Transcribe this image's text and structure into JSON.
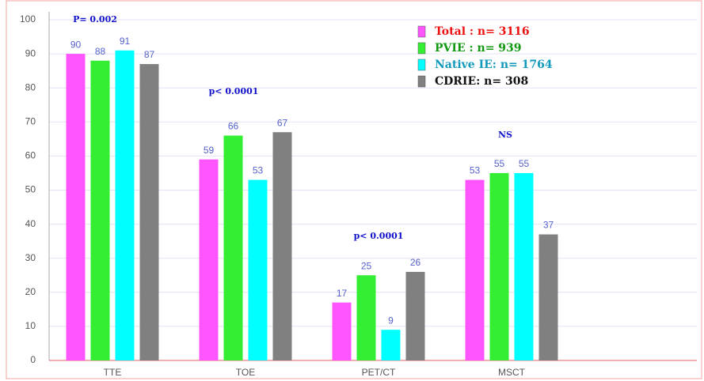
{
  "chart_data": {
    "type": "bar",
    "categories": [
      "TTE",
      "TOE",
      "PET/CT",
      "MSCT"
    ],
    "series": [
      {
        "name": "Total : n= 3116",
        "color": "#ff55ff",
        "legend_text_color": "#ee1111",
        "values": [
          90,
          59,
          17,
          53
        ]
      },
      {
        "name": "PVIE : n= 939",
        "color": "#33ee33",
        "legend_text_color": "#119911",
        "values": [
          88,
          66,
          25,
          55
        ]
      },
      {
        "name": "Native IE: n= 1764",
        "color": "#00ffff",
        "legend_text_color": "#1199bb",
        "values": [
          91,
          53,
          9,
          55
        ]
      },
      {
        "name": "CDRIE: n= 308",
        "color": "#808080",
        "legend_text_color": "#111111",
        "values": [
          87,
          67,
          26,
          37
        ]
      }
    ],
    "annotations": [
      "P= 0.002",
      "p< 0.0001",
      "p< 0.0001",
      "NS"
    ],
    "ylim": [
      0,
      100
    ],
    "yticks": [
      0,
      10,
      20,
      30,
      40,
      50,
      60,
      70,
      80,
      90,
      100
    ],
    "grid": true
  }
}
